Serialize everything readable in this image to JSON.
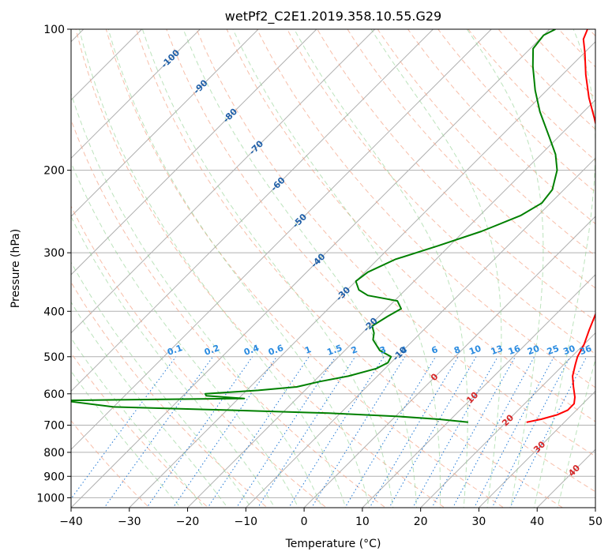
{
  "chart_data": {
    "type": "line",
    "title": "wetPf2_C2E1.2019.358.10.55.G29",
    "xlabel": "Temperature (°C)",
    "ylabel": "Pressure (hPa)",
    "xlim": [
      -40,
      50
    ],
    "ylim": [
      1050,
      100
    ],
    "y_scale": "log",
    "grid": true,
    "x_ticks": [
      -40,
      -30,
      -20,
      -10,
      0,
      10,
      20,
      30,
      40,
      50
    ],
    "y_ticks": [
      100,
      200,
      300,
      400,
      500,
      600,
      700,
      800,
      900,
      1000
    ],
    "isotherm_labels": [
      "-100",
      "-90",
      "-80",
      "-70",
      "-60",
      "-50",
      "-40",
      "-30",
      "-20",
      "-10",
      "0",
      "10",
      "20",
      "30",
      "40"
    ],
    "isotherm_label_values": [
      -100,
      -90,
      -80,
      -70,
      -60,
      -50,
      -40,
      -30,
      -20,
      -10,
      0,
      10,
      20,
      30,
      40
    ],
    "mixing_ratio_labels": [
      "0.1",
      "0.2",
      "0.4",
      "0.6",
      "1",
      "1.5",
      "2",
      "3",
      "4",
      "6",
      "8",
      "10",
      "13",
      "16",
      "20",
      "25",
      "30",
      "36"
    ],
    "mixing_ratio_values": [
      0.1,
      0.2,
      0.4,
      0.6,
      1,
      1.5,
      2,
      3,
      4,
      6,
      8,
      10,
      13,
      16,
      20,
      25,
      30,
      36
    ],
    "series": [
      {
        "color": "#ff0000",
        "role": "temperature",
        "points": [
          {
            "p": 690,
            "t": 23.5
          },
          {
            "p": 680,
            "t": 25.5
          },
          {
            "p": 665,
            "t": 27.5
          },
          {
            "p": 650,
            "t": 28.5
          },
          {
            "p": 630,
            "t": 28.5
          },
          {
            "p": 610,
            "t": 27.5
          },
          {
            "p": 580,
            "t": 25.5
          },
          {
            "p": 550,
            "t": 23.5
          },
          {
            "p": 520,
            "t": 22.0
          },
          {
            "p": 500,
            "t": 21.0
          },
          {
            "p": 470,
            "t": 20.0
          },
          {
            "p": 440,
            "t": 18.5
          },
          {
            "p": 400,
            "t": 16.5
          },
          {
            "p": 360,
            "t": 13.5
          },
          {
            "p": 330,
            "t": 11.0
          },
          {
            "p": 300,
            "t": 8.5
          },
          {
            "p": 280,
            "t": 6.0
          },
          {
            "p": 260,
            "t": 2.5
          },
          {
            "p": 240,
            "t": -1.0
          },
          {
            "p": 220,
            "t": -3.5
          },
          {
            "p": 200,
            "t": -6.5
          },
          {
            "p": 185,
            "t": -9.0
          },
          {
            "p": 170,
            "t": -13.0
          },
          {
            "p": 155,
            "t": -17.0
          },
          {
            "p": 140,
            "t": -21.5
          },
          {
            "p": 125,
            "t": -26.0
          },
          {
            "p": 112,
            "t": -30.0
          },
          {
            "p": 105,
            "t": -32.5
          },
          {
            "p": 100,
            "t": -33.5
          }
        ]
      },
      {
        "color": "#008000",
        "role": "dewpoint",
        "points": [
          {
            "p": 690,
            "t": 13.5
          },
          {
            "p": 680,
            "t": 8.0
          },
          {
            "p": 670,
            "t": 0.0
          },
          {
            "p": 660,
            "t": -12.0
          },
          {
            "p": 650,
            "t": -30.0
          },
          {
            "p": 640,
            "t": -50.0
          },
          {
            "p": 620,
            "t": -60.0
          },
          {
            "p": 614,
            "t": -29.0
          },
          {
            "p": 606,
            "t": -36.0
          },
          {
            "p": 600,
            "t": -36.5
          },
          {
            "p": 590,
            "t": -28.0
          },
          {
            "p": 580,
            "t": -22.0
          },
          {
            "p": 565,
            "t": -19.0
          },
          {
            "p": 550,
            "t": -15.0
          },
          {
            "p": 530,
            "t": -11.5
          },
          {
            "p": 515,
            "t": -10.5
          },
          {
            "p": 500,
            "t": -11.0
          },
          {
            "p": 485,
            "t": -14.0
          },
          {
            "p": 460,
            "t": -17.0
          },
          {
            "p": 445,
            "t": -18.0
          },
          {
            "p": 430,
            "t": -19.5
          },
          {
            "p": 410,
            "t": -18.5
          },
          {
            "p": 395,
            "t": -17.5
          },
          {
            "p": 380,
            "t": -19.5
          },
          {
            "p": 370,
            "t": -25.5
          },
          {
            "p": 360,
            "t": -28.0
          },
          {
            "p": 345,
            "t": -30.0
          },
          {
            "p": 330,
            "t": -29.5
          },
          {
            "p": 310,
            "t": -27.0
          },
          {
            "p": 290,
            "t": -22.0
          },
          {
            "p": 270,
            "t": -17.0
          },
          {
            "p": 250,
            "t": -13.0
          },
          {
            "p": 235,
            "t": -11.5
          },
          {
            "p": 220,
            "t": -12.0
          },
          {
            "p": 200,
            "t": -14.5
          },
          {
            "p": 185,
            "t": -17.5
          },
          {
            "p": 170,
            "t": -21.5
          },
          {
            "p": 150,
            "t": -27.5
          },
          {
            "p": 135,
            "t": -32.0
          },
          {
            "p": 120,
            "t": -36.5
          },
          {
            "p": 110,
            "t": -39.5
          },
          {
            "p": 103,
            "t": -40.0
          },
          {
            "p": 100,
            "t": -39.0
          }
        ]
      }
    ]
  }
}
